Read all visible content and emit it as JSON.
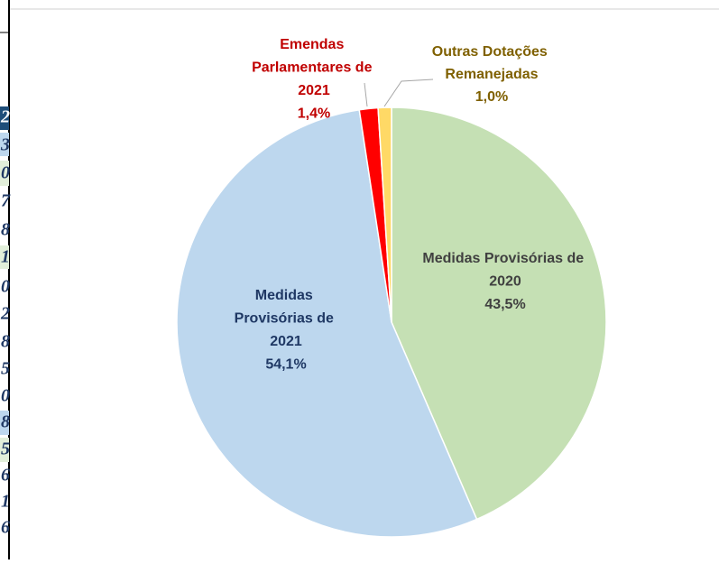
{
  "chart_data": {
    "type": "pie",
    "categories": [
      "Medidas Provisórias de 2020",
      "Medidas Provisórias de 2021",
      "Emendas Parlamentares de 2021",
      "Outras Dotações Remanejadas"
    ],
    "values": [
      43.5,
      54.1,
      1.4,
      1.0
    ],
    "value_labels": [
      "43,5%",
      "54,1%",
      "1,4%",
      "1,0%"
    ],
    "colors": [
      "#c5e0b4",
      "#bdd7ee",
      "#ff0000",
      "#ffd966"
    ],
    "label_colors": [
      "#404040",
      "#1f3864",
      "#c00000",
      "#7f6000"
    ]
  },
  "left_table_fragments": [
    "2",
    "3",
    "0",
    "7",
    "8",
    "1",
    "0",
    "2",
    "8",
    "5",
    "0",
    "8",
    "5",
    "6",
    "1",
    "6"
  ]
}
